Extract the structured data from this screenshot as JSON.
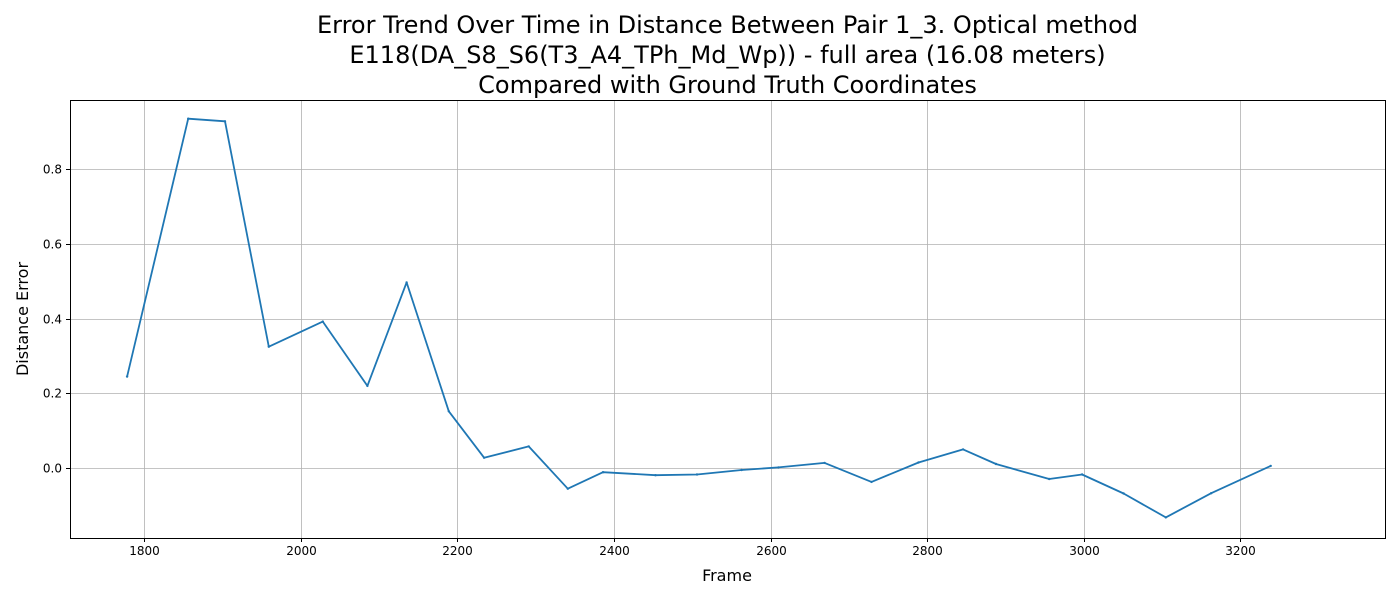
{
  "chart_data": {
    "type": "line",
    "title_lines": [
      "Error Trend Over Time in Distance Between Pair 1_3. Optical method",
      "E118(DA_S8_S6(T3_A4_TPh_Md_Wp)) - full area (16.08 meters)",
      "Compared with Ground Truth Coordinates"
    ],
    "xlabel": "Frame",
    "ylabel": "Distance Error",
    "xlim": [
      1705,
      3385
    ],
    "ylim": [
      -0.187,
      0.985
    ],
    "x_ticks": [
      1800,
      2000,
      2200,
      2400,
      2600,
      2800,
      3000,
      3200
    ],
    "y_ticks": [
      0.0,
      0.2,
      0.4,
      0.6,
      0.8
    ],
    "x_tick_labels": [
      "1800",
      "2000",
      "2200",
      "2400",
      "2600",
      "2800",
      "3000",
      "3200"
    ],
    "y_tick_labels": [
      "0.0",
      "0.2",
      "0.4",
      "0.6",
      "0.8"
    ],
    "grid": true,
    "line_color": "#1f77b4",
    "series": [
      {
        "x": [
          1778,
          1856,
          1903,
          1959,
          2028,
          2085,
          2135,
          2189,
          2234,
          2291,
          2341,
          2386,
          2453,
          2506,
          2563,
          2610,
          2669,
          2729,
          2789,
          2846,
          2888,
          2956,
          2998,
          3051,
          3105,
          3163,
          3239
        ],
        "y": [
          0.245,
          0.935,
          0.928,
          0.325,
          0.392,
          0.22,
          0.497,
          0.152,
          0.028,
          0.058,
          -0.055,
          -0.011,
          -0.019,
          -0.017,
          -0.005,
          0.002,
          0.014,
          -0.037,
          0.015,
          0.05,
          0.011,
          -0.029,
          -0.017,
          -0.068,
          -0.132,
          -0.067,
          0.006
        ]
      }
    ]
  }
}
